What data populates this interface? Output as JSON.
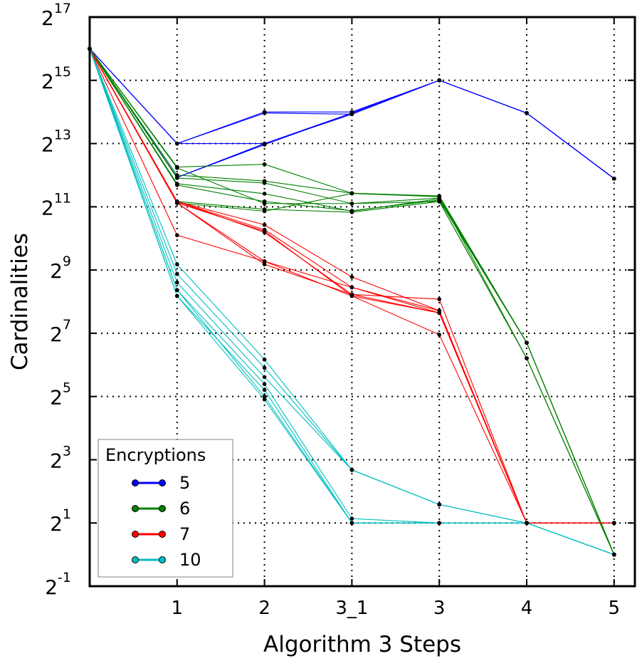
{
  "chart_data": {
    "type": "line",
    "title": "",
    "xlabel": "Algorithm 3 Steps",
    "ylabel": "Cardinalities",
    "y_scale": "log2",
    "ylim_exponent": [
      -1,
      17
    ],
    "y_tick_base": "2",
    "y_tick_exponents": [
      "-1",
      "1",
      "3",
      "5",
      "7",
      "9",
      "11",
      "13",
      "15",
      "17"
    ],
    "categories": [
      "",
      "1",
      "2",
      "3_1",
      "3",
      "4",
      "5"
    ],
    "grid": true,
    "legend": {
      "title": "Encryptions",
      "placement": "lower-left"
    },
    "series": [
      {
        "name": "5",
        "color": "#0000ff",
        "lines": [
          [
            65536,
            8192,
            16384,
            16384,
            32768,
            16000,
            3800
          ],
          [
            65536,
            8192,
            16000,
            15600,
            32768,
            16000,
            3800
          ],
          [
            65536,
            8192,
            8192,
            16000,
            32768,
            16000,
            3800
          ],
          [
            65536,
            3900,
            8192,
            15600,
            32768,
            16000,
            3800
          ],
          [
            65536,
            3900,
            8000,
            16000,
            32768,
            16000,
            3800
          ]
        ]
      },
      {
        "name": "6",
        "color": "#008000",
        "lines": [
          [
            65536,
            4900,
            5200,
            2760,
            2600,
            104,
            1
          ],
          [
            65536,
            4100,
            3600,
            2760,
            2560,
            104,
            1
          ],
          [
            65536,
            3850,
            3450,
            2200,
            2480,
            104,
            1
          ],
          [
            65536,
            3400,
            2730,
            1860,
            2440,
            104,
            1
          ],
          [
            65536,
            3300,
            2300,
            1880,
            2370,
            104,
            1
          ],
          [
            65536,
            4800,
            2200,
            2200,
            2300,
            74,
            1
          ],
          [
            65536,
            2300,
            1940,
            1820,
            2300,
            74,
            1
          ],
          [
            65536,
            2230,
            1860,
            2740,
            2560,
            74,
            1
          ]
        ]
      },
      {
        "name": "7",
        "color": "#ff0000",
        "lines": [
          [
            65536,
            2300,
            1380,
            440,
            210,
            2,
            2
          ],
          [
            65536,
            2300,
            1240,
            350,
            210,
            2,
            2
          ],
          [
            65536,
            2300,
            1170,
            300,
            200,
            2,
            2
          ],
          [
            65536,
            2230,
            1200,
            290,
            200,
            2,
            2
          ],
          [
            65536,
            1100,
            620,
            350,
            200,
            2,
            2
          ],
          [
            65536,
            2230,
            580,
            300,
            270,
            2,
            2
          ],
          [
            65536,
            2230,
            620,
            290,
            124,
            2,
            2
          ]
        ]
      },
      {
        "name": "10",
        "color": "#00bfbf",
        "lines": [
          [
            65536,
            580,
            72,
            6.4,
            3,
            2,
            1
          ],
          [
            65536,
            470,
            60,
            6.4,
            3,
            2,
            1
          ],
          [
            65536,
            390,
            49,
            6.4,
            3,
            2,
            1
          ],
          [
            65536,
            330,
            42,
            2.2,
            2,
            2,
            1
          ],
          [
            65536,
            290,
            37,
            2,
            2,
            2,
            1
          ],
          [
            65536,
            330,
            32,
            2,
            2,
            2,
            1
          ],
          [
            65536,
            290,
            30,
            2,
            2,
            2,
            1
          ]
        ]
      }
    ]
  }
}
